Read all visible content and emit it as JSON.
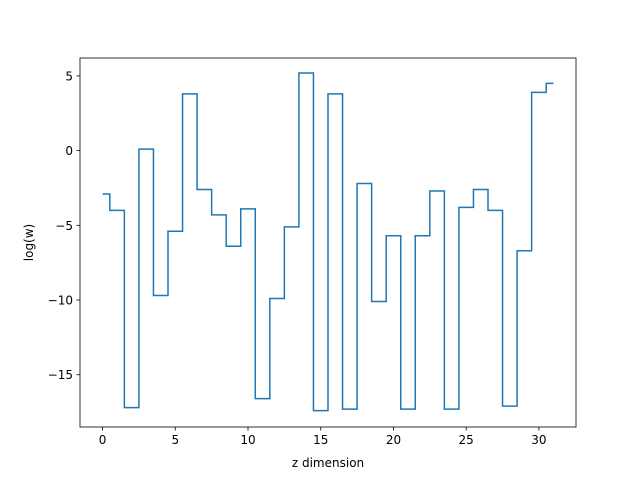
{
  "chart_data": {
    "type": "line",
    "drawstyle": "steps-mid",
    "title": "",
    "xlabel": "z dimension",
    "ylabel": "log(w)",
    "xlim": [
      -1.55,
      32.55
    ],
    "ylim": [
      -18.5,
      6.2
    ],
    "xticks": [
      0,
      5,
      10,
      15,
      20,
      25,
      30
    ],
    "yticks": [
      5,
      0,
      -5,
      -10,
      -15
    ],
    "ytick_labels": [
      "5",
      "0",
      "−5",
      "−10",
      "−15"
    ],
    "grid": false,
    "line_color": "#1f77b4",
    "series": [
      {
        "x": [
          0,
          1,
          2,
          3,
          4,
          5,
          6,
          7,
          8,
          9,
          10,
          11,
          12,
          13,
          14,
          15,
          16,
          17,
          18,
          19,
          20,
          21,
          22,
          23,
          24,
          25,
          26,
          27,
          28,
          29,
          30,
          31
        ],
        "values": [
          -2.9,
          -4.0,
          -17.2,
          0.1,
          -9.7,
          -5.4,
          3.8,
          -2.6,
          -4.3,
          -6.4,
          -3.9,
          -16.6,
          -9.9,
          -5.1,
          5.2,
          -17.4,
          3.8,
          -17.3,
          -2.2,
          -10.1,
          -5.7,
          -17.3,
          -5.7,
          -2.7,
          -17.3,
          -3.8,
          -2.6,
          -4.0,
          -17.1,
          -6.7,
          3.9,
          4.5
        ]
      }
    ]
  }
}
